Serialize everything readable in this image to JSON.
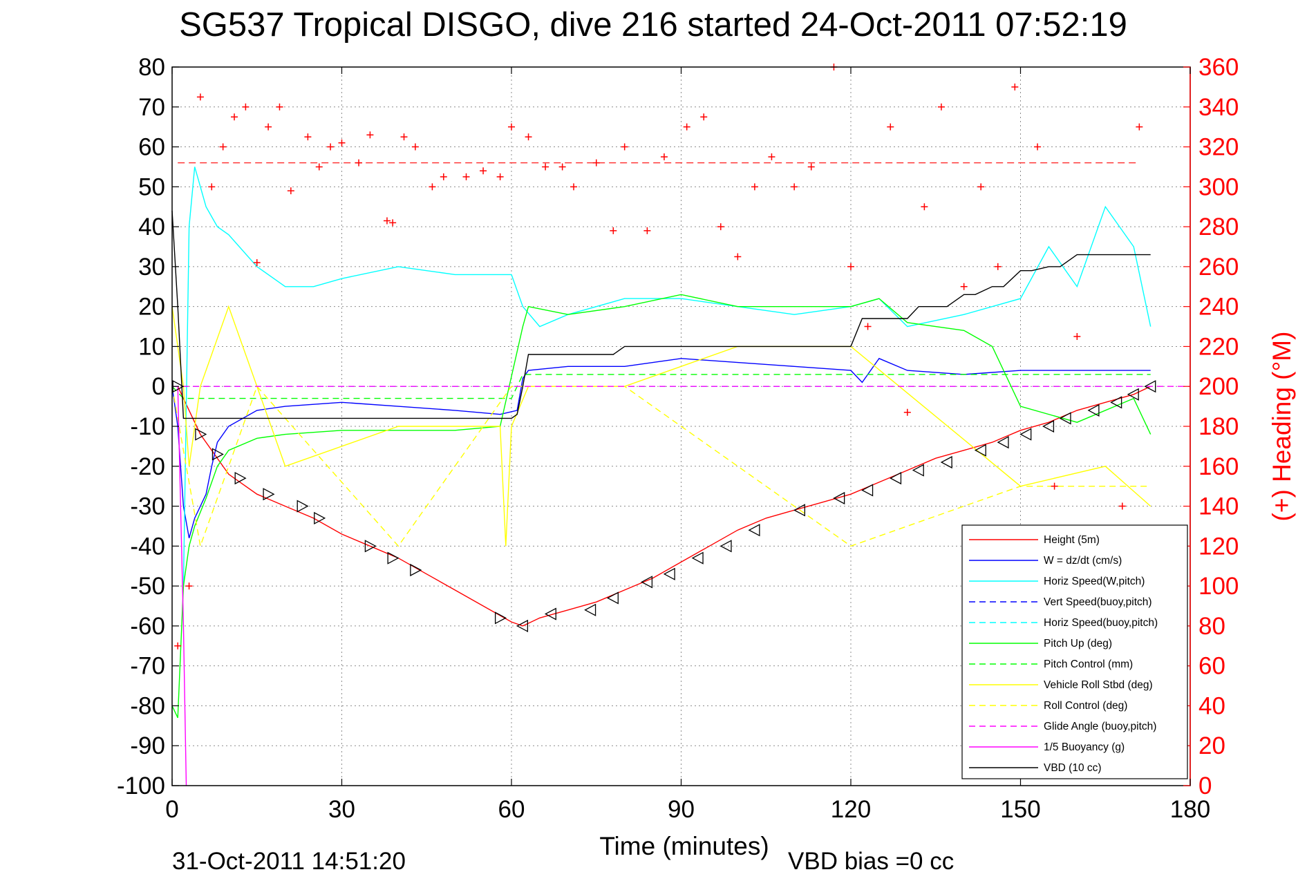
{
  "chart_data": {
    "type": "line",
    "title": "SG537 Tropical DISGO, dive 216 started 24-Oct-2011 07:52:19",
    "xlabel": "Time (minutes)",
    "ylabel_right": "(+) Heading (°M)",
    "footer_left": "31-Oct-2011 14:51:20",
    "footer_right": "VBD bias =0 cc",
    "xlim": [
      0,
      180
    ],
    "ylim": [
      -100,
      80
    ],
    "ylim_right": [
      0,
      360
    ],
    "xticks": [
      "0",
      "30",
      "60",
      "90",
      "120",
      "150",
      "180"
    ],
    "yticks": [
      "80",
      "70",
      "60",
      "50",
      "40",
      "30",
      "20",
      "10",
      "0",
      "-10",
      "-20",
      "-30",
      "-40",
      "-50",
      "-60",
      "-70",
      "-80",
      "-90",
      "-100"
    ],
    "yticks_right": [
      "360",
      "340",
      "320",
      "300",
      "280",
      "260",
      "240",
      "220",
      "200",
      "180",
      "160",
      "140",
      "120",
      "100",
      "80",
      "60",
      "40",
      "20",
      "0"
    ],
    "grid": true,
    "legend_position": "lower-right",
    "series": [
      {
        "name": "Height (5m)",
        "color": "#ff0000",
        "style": "solid",
        "x": [
          1,
          5,
          10,
          15,
          20,
          25,
          30,
          35,
          40,
          45,
          50,
          55,
          60,
          62,
          65,
          70,
          75,
          80,
          85,
          90,
          95,
          100,
          105,
          110,
          115,
          120,
          125,
          130,
          135,
          140,
          145,
          150,
          155,
          160,
          165,
          170,
          173
        ],
        "y": [
          0,
          -12,
          -22,
          -27,
          -30,
          -33,
          -37,
          -40,
          -43,
          -47,
          -51,
          -55,
          -59,
          -60,
          -58,
          -56,
          -54,
          -51,
          -48,
          -44,
          -40,
          -36,
          -33,
          -31,
          -29,
          -27,
          -24,
          -21,
          -18,
          -16,
          -14,
          -11,
          -9,
          -6,
          -4,
          -2,
          0
        ]
      },
      {
        "name": "W = dz/dt (cm/s)",
        "color": "#0000ff",
        "style": "solid",
        "x": [
          0,
          1,
          2,
          3,
          4,
          5,
          6,
          7,
          8,
          10,
          15,
          20,
          30,
          40,
          50,
          58,
          61,
          62,
          63,
          70,
          80,
          90,
          100,
          110,
          120,
          122,
          125,
          130,
          140,
          150,
          160,
          170,
          173
        ],
        "y": [
          0,
          -10,
          -30,
          -38,
          -33,
          -30,
          -27,
          -20,
          -14,
          -10,
          -6,
          -5,
          -4,
          -5,
          -6,
          -7,
          -6,
          2,
          4,
          5,
          5,
          7,
          6,
          5,
          4,
          1,
          7,
          4,
          3,
          4,
          4,
          4,
          4
        ]
      },
      {
        "name": "Horiz Speed(W,pitch)",
        "color": "#00ffff",
        "style": "solid",
        "x": [
          2,
          3,
          4,
          6,
          8,
          10,
          15,
          20,
          25,
          30,
          40,
          50,
          60,
          62,
          65,
          70,
          75,
          80,
          90,
          100,
          110,
          120,
          125,
          130,
          140,
          150,
          155,
          160,
          165,
          170,
          173
        ],
        "y": [
          -50,
          40,
          55,
          45,
          40,
          38,
          30,
          25,
          25,
          27,
          30,
          28,
          28,
          20,
          15,
          18,
          20,
          22,
          22,
          20,
          18,
          20,
          22,
          15,
          18,
          22,
          35,
          25,
          45,
          35,
          15
        ]
      },
      {
        "name": "Vert Speed(buoy,pitch)",
        "color": "#0000ff",
        "style": "dashed",
        "x": [
          0,
          62,
          173
        ],
        "y": [
          0,
          0,
          0
        ]
      },
      {
        "name": "Horiz Speed(buoy,pitch)",
        "color": "#00ffff",
        "style": "dashed",
        "x": [
          0,
          62,
          173
        ],
        "y": [
          0,
          0,
          0
        ]
      },
      {
        "name": "Pitch Up (deg)",
        "color": "#00ff00",
        "style": "solid",
        "x": [
          0,
          1,
          2,
          3,
          4,
          6,
          8,
          10,
          15,
          20,
          30,
          40,
          50,
          58,
          62,
          63,
          70,
          80,
          90,
          100,
          110,
          120,
          125,
          130,
          140,
          145,
          150,
          160,
          170,
          173
        ],
        "y": [
          -80,
          -83,
          -50,
          -40,
          -35,
          -28,
          -20,
          -16,
          -13,
          -12,
          -11,
          -11,
          -11,
          -10,
          15,
          20,
          18,
          20,
          23,
          20,
          20,
          20,
          22,
          16,
          14,
          10,
          -5,
          -9,
          -3,
          -12
        ]
      },
      {
        "name": "Pitch Control (mm)",
        "color": "#00ff00",
        "style": "dashed",
        "x": [
          0,
          2,
          60,
          62,
          120,
          173
        ],
        "y": [
          0,
          -3,
          -3,
          3,
          3,
          3
        ]
      },
      {
        "name": "Vehicle Roll Stbd (deg)",
        "color": "#ffff00",
        "style": "solid",
        "x": [
          0,
          2,
          3,
          5,
          10,
          15,
          20,
          40,
          58,
          59,
          60,
          63,
          70,
          80,
          90,
          100,
          110,
          120,
          150,
          165,
          173
        ],
        "y": [
          20,
          0,
          -20,
          0,
          20,
          0,
          -20,
          -10,
          -10,
          -40,
          -10,
          0,
          0,
          0,
          5,
          10,
          10,
          10,
          -25,
          -20,
          -30
        ]
      },
      {
        "name": "Roll Control (deg)",
        "color": "#ffff00",
        "style": "dashed",
        "x": [
          0,
          5,
          15,
          40,
          60,
          80,
          120,
          150,
          173
        ],
        "y": [
          0,
          -40,
          0,
          -40,
          0,
          0,
          -40,
          -25,
          -25
        ]
      },
      {
        "name": "Glide Angle (buoy,pitch)",
        "color": "#ff00ff",
        "style": "dashed",
        "x": [
          0,
          180
        ],
        "y": [
          0,
          0
        ]
      },
      {
        "name": "1/5 Buoyancy (g)",
        "color": "#ff00ff",
        "style": "solid",
        "x": [
          1,
          1.5,
          2,
          2.5
        ],
        "y": [
          0,
          -30,
          -60,
          -100
        ]
      },
      {
        "name": "VBD (10 cc)",
        "color": "#000000",
        "style": "solid",
        "x": [
          0,
          1,
          2,
          60,
          61,
          62,
          63,
          78,
          80,
          120,
          122,
          130,
          132,
          137,
          140,
          142,
          145,
          147,
          150,
          152,
          155,
          157,
          160,
          173
        ],
        "y": [
          44,
          20,
          -8,
          -8,
          -7,
          0,
          8,
          8,
          10,
          10,
          17,
          17,
          20,
          20,
          23,
          23,
          25,
          25,
          29,
          29,
          30,
          30,
          33,
          33
        ]
      },
      {
        "name": "Heading",
        "axis": "right",
        "color": "#ff0000",
        "marker": "+",
        "style": "markers",
        "x": [
          1,
          3,
          5,
          7,
          9,
          11,
          13,
          15,
          17,
          19,
          21,
          24,
          26,
          28,
          30,
          33,
          35,
          38,
          39,
          41,
          43,
          46,
          48,
          52,
          55,
          58,
          60,
          63,
          66,
          69,
          71,
          75,
          78,
          80,
          84,
          87,
          91,
          94,
          97,
          100,
          103,
          106,
          110,
          113,
          117,
          120,
          123,
          127,
          130,
          133,
          136,
          140,
          143,
          146,
          149,
          153,
          156,
          160,
          164,
          168,
          171
        ],
        "y": [
          70,
          100,
          345,
          300,
          320,
          335,
          340,
          262,
          330,
          340,
          298,
          325,
          310,
          320,
          322,
          312,
          326,
          283,
          282,
          325,
          320,
          300,
          305,
          305,
          308,
          305,
          330,
          325,
          310,
          310,
          300,
          312,
          278,
          320,
          278,
          315,
          330,
          335,
          280,
          265,
          300,
          315,
          300,
          310,
          360,
          260,
          230,
          330,
          187,
          290,
          340,
          250,
          300,
          260,
          350,
          320,
          150,
          225,
          110,
          140,
          330
        ]
      }
    ],
    "legend": [
      {
        "label": "Height (5m)",
        "color": "#ff0000",
        "style": "solid"
      },
      {
        "label": "W = dz/dt (cm/s)",
        "color": "#0000ff",
        "style": "solid"
      },
      {
        "label": "Horiz Speed(W,pitch)",
        "color": "#00ffff",
        "style": "solid"
      },
      {
        "label": "Vert Speed(buoy,pitch)",
        "color": "#0000ff",
        "style": "dashed"
      },
      {
        "label": "Horiz Speed(buoy,pitch)",
        "color": "#00ffff",
        "style": "dashed"
      },
      {
        "label": "Pitch Up (deg)",
        "color": "#00ff00",
        "style": "solid"
      },
      {
        "label": "Pitch Control (mm)",
        "color": "#00ff00",
        "style": "dashed"
      },
      {
        "label": "Vehicle Roll Stbd (deg)",
        "color": "#ffff00",
        "style": "solid"
      },
      {
        "label": "Roll Control (deg)",
        "color": "#ffff00",
        "style": "dashed"
      },
      {
        "label": "Glide Angle (buoy,pitch)",
        "color": "#ff00ff",
        "style": "dashed"
      },
      {
        "label": "1/5 Buoyancy (g)",
        "color": "#ff00ff",
        "style": "solid"
      },
      {
        "label": "VBD (10 cc)",
        "color": "#000000",
        "style": "solid"
      }
    ],
    "reference_line_right": {
      "y": 312,
      "color": "#ff0000",
      "style": "dashed"
    },
    "triangle_markers": {
      "x": [
        1,
        5,
        8,
        12,
        17,
        23,
        26,
        35,
        39,
        43,
        58,
        62,
        67,
        74,
        78,
        84,
        88,
        93,
        98,
        103,
        111,
        118,
        123,
        128,
        132,
        137,
        143,
        147,
        151,
        155,
        158,
        163,
        167,
        170,
        173
      ],
      "y": [
        0,
        -12,
        -17,
        -23,
        -27,
        -30,
        -33,
        -40,
        -43,
        -46,
        -58,
        -60,
        -57,
        -56,
        -53,
        -49,
        -47,
        -43,
        -40,
        -36,
        -31,
        -28,
        -26,
        -23,
        -21,
        -19,
        -16,
        -14,
        -12,
        -10,
        -8,
        -6,
        -4,
        -2,
        0
      ]
    }
  }
}
